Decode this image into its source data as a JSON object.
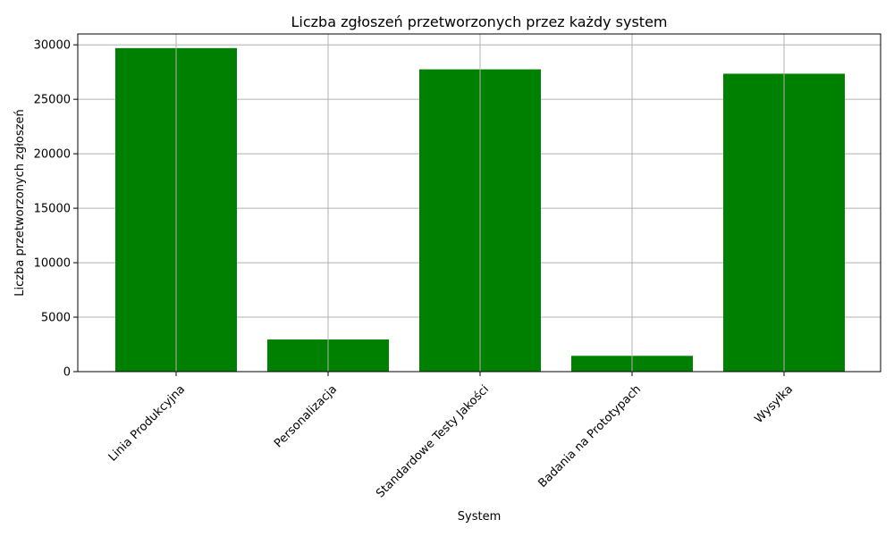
{
  "chart_data": {
    "type": "bar",
    "title": "Liczba zgłoszeń przetworzonych przez każdy system",
    "xlabel": "System",
    "ylabel": "Liczba przetworzonych zgłoszeń",
    "categories": [
      "Linia Produkcyjna",
      "Personalizacja",
      "Standardowe Testy Jakości",
      "Badania na Prototypach",
      "Wysyłka"
    ],
    "values": [
      29700,
      2950,
      27750,
      1450,
      27350
    ],
    "ylim": [
      0,
      31000
    ],
    "yticks": [
      0,
      5000,
      10000,
      15000,
      20000,
      25000,
      30000
    ],
    "grid": true,
    "bar_color": "#008000"
  }
}
